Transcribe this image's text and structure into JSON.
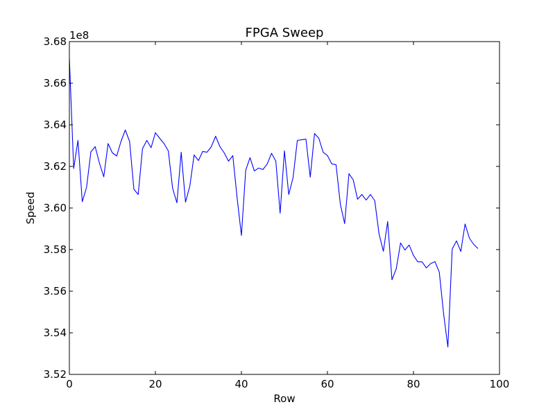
{
  "chart_data": {
    "type": "line",
    "title": "FPGA Sweep",
    "xlabel": "Row",
    "ylabel": "Speed",
    "y_offset_label": "1e8",
    "xlim": [
      0,
      100
    ],
    "ylim": [
      3.52,
      3.68
    ],
    "x_ticks": [
      0,
      20,
      40,
      60,
      80,
      100
    ],
    "x_tick_labels": [
      "0",
      "20",
      "40",
      "60",
      "80",
      "100"
    ],
    "y_ticks": [
      3.52,
      3.54,
      3.56,
      3.58,
      3.6,
      3.62,
      3.64,
      3.66,
      3.68
    ],
    "y_tick_labels": [
      "3.52",
      "3.54",
      "3.56",
      "3.58",
      "3.60",
      "3.62",
      "3.64",
      "3.66",
      "3.68"
    ],
    "grid": false,
    "series": [
      {
        "color": "#0000ff",
        "x": [
          0,
          1,
          2,
          3,
          4,
          5,
          6,
          7,
          8,
          9,
          10,
          11,
          12,
          13,
          14,
          15,
          16,
          17,
          18,
          19,
          20,
          21,
          22,
          23,
          24,
          25,
          26,
          27,
          28,
          29,
          30,
          31,
          32,
          33,
          34,
          35,
          36,
          37,
          38,
          39,
          40,
          41,
          42,
          43,
          44,
          45,
          46,
          47,
          48,
          49,
          50,
          51,
          52,
          53,
          54,
          55,
          56,
          57,
          58,
          59,
          60,
          61,
          62,
          63,
          64,
          65,
          66,
          67,
          68,
          69,
          70,
          71,
          72,
          73,
          74,
          75,
          76,
          77,
          78,
          79,
          80,
          81,
          82,
          83,
          84,
          85,
          86,
          87,
          88,
          89,
          90,
          91,
          92,
          93,
          94,
          95
        ],
        "values": [
          3.672,
          3.619,
          3.6325,
          3.603,
          3.61,
          3.627,
          3.6295,
          3.6215,
          3.615,
          3.631,
          3.6265,
          3.625,
          3.632,
          3.6375,
          3.632,
          3.609,
          3.6065,
          3.6285,
          3.6325,
          3.629,
          3.6362,
          3.6335,
          3.631,
          3.6275,
          3.6095,
          3.6025,
          3.6268,
          3.6028,
          3.6105,
          3.6255,
          3.6228,
          3.6272,
          3.6268,
          3.6295,
          3.6345,
          3.6295,
          3.6265,
          3.6225,
          3.6252,
          3.6048,
          3.5868,
          3.6182,
          3.6242,
          3.6178,
          3.6192,
          3.6185,
          3.6212,
          3.6263,
          3.6225,
          3.5975,
          3.6275,
          3.6065,
          3.6145,
          3.6325,
          3.6328,
          3.6331,
          3.6148,
          3.6358,
          3.6335,
          3.6268,
          3.6252,
          3.6212,
          3.6208,
          3.6018,
          3.5925,
          3.6165,
          3.6135,
          3.6042,
          3.6065,
          3.6038,
          3.6065,
          3.6035,
          3.5875,
          3.5792,
          3.5935,
          3.5655,
          3.5708,
          3.5832,
          3.5798,
          3.5822,
          3.5772,
          3.5741,
          3.5741,
          3.5712,
          3.5733,
          3.5742,
          3.5692,
          3.5492,
          3.5332,
          3.5802,
          3.5842,
          3.5791,
          3.5923,
          3.5855,
          3.5825,
          3.5805
        ]
      }
    ]
  }
}
